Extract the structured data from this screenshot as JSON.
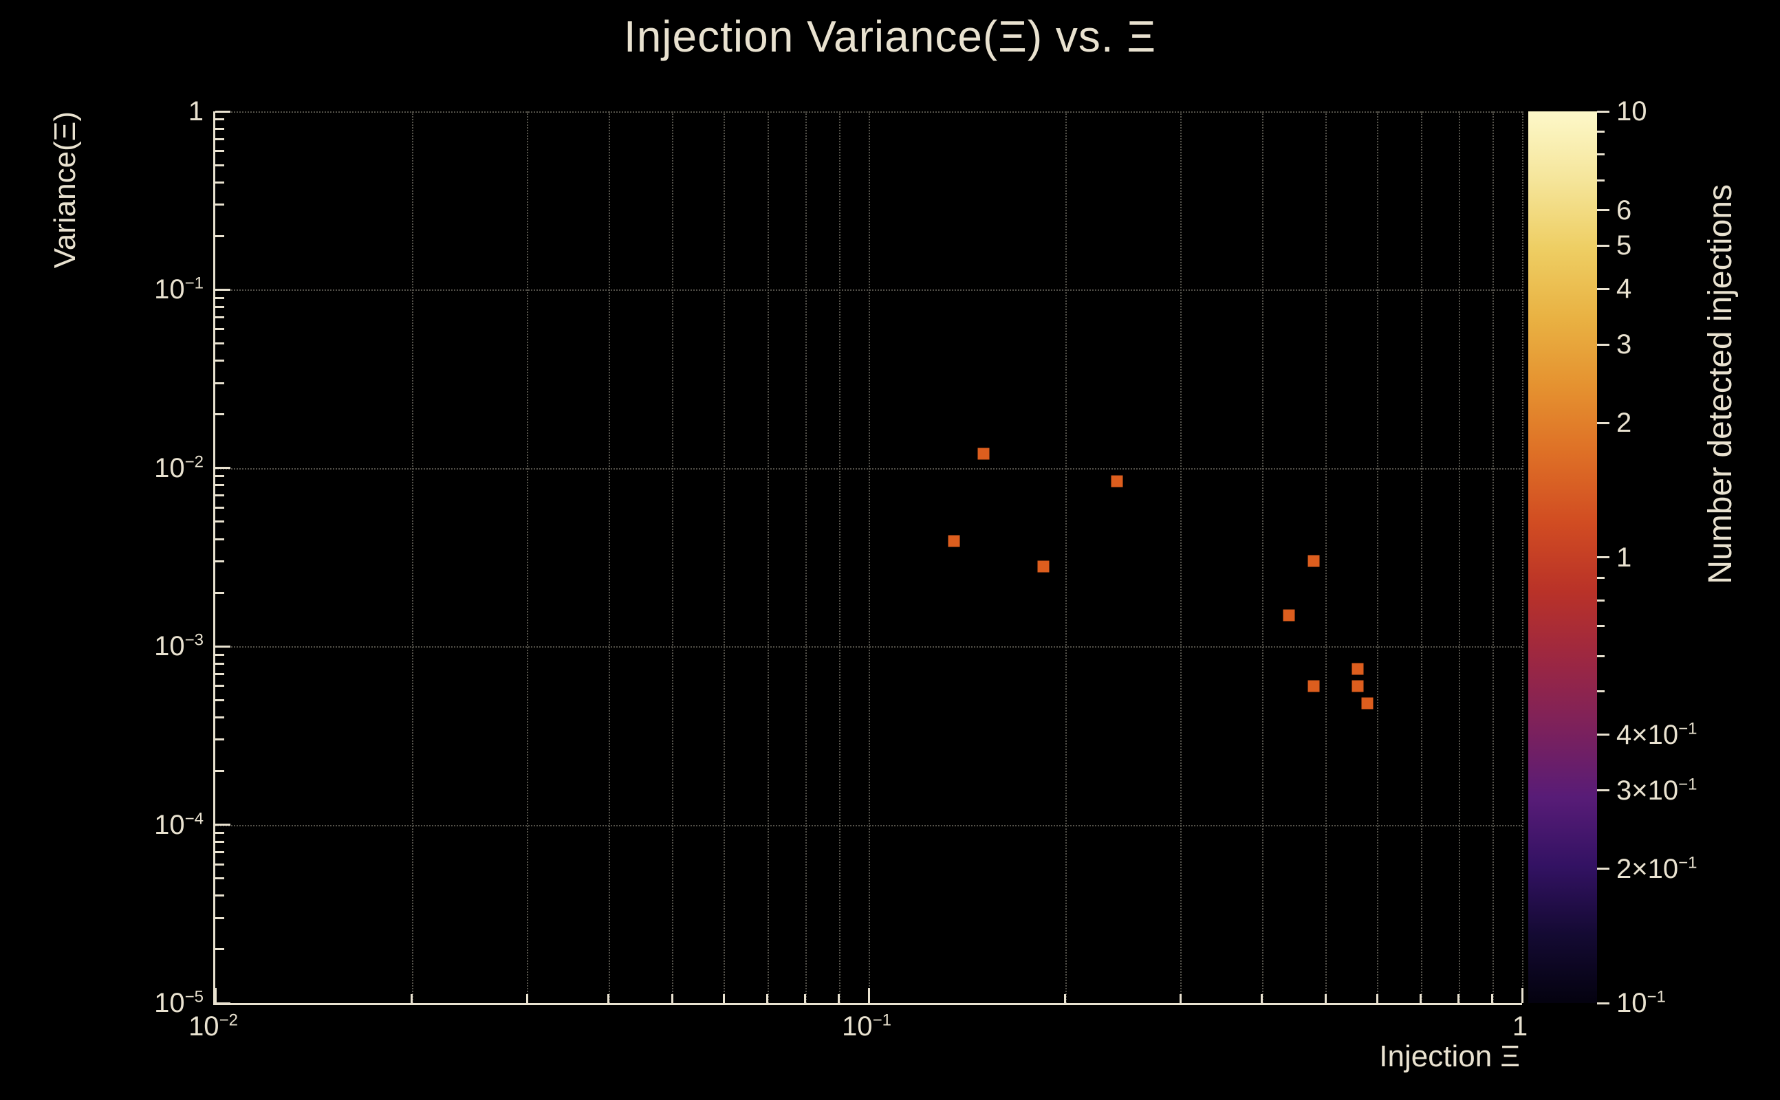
{
  "colors": {
    "background": "#000000",
    "foreground": "#e9e2d0",
    "grid": "#54524a",
    "marker": "#dd5e1e"
  },
  "chart_data": {
    "type": "scatter",
    "title": "Injection Variance(Ξ) vs. Ξ",
    "xlabel": "Injection Ξ",
    "ylabel": "Variance(Ξ)",
    "colorbar_label": "Number detected injections",
    "xscale": "log",
    "yscale": "log",
    "xlim": [
      0.01,
      1
    ],
    "ylim": [
      1e-05,
      1
    ],
    "grid_on": true,
    "x_tick_labels": [
      {
        "v": 0.01,
        "label": "10^{−2}"
      },
      {
        "v": 0.1,
        "label": "10^{−1}"
      },
      {
        "v": 1,
        "label": "1"
      }
    ],
    "y_tick_labels": [
      {
        "v": 1,
        "label": "1"
      },
      {
        "v": 0.1,
        "label": "10^{−1}"
      },
      {
        "v": 0.01,
        "label": "10^{−2}"
      },
      {
        "v": 0.001,
        "label": "10^{−3}"
      },
      {
        "v": 0.0001,
        "label": "10^{−4}"
      },
      {
        "v": 1e-05,
        "label": "10^{−5}"
      }
    ],
    "points": [
      {
        "x": 0.15,
        "y": 0.012,
        "n_detected": 1
      },
      {
        "x": 0.24,
        "y": 0.0084,
        "n_detected": 1
      },
      {
        "x": 0.135,
        "y": 0.0039,
        "n_detected": 1
      },
      {
        "x": 0.185,
        "y": 0.0028,
        "n_detected": 1
      },
      {
        "x": 0.48,
        "y": 0.003,
        "n_detected": 1
      },
      {
        "x": 0.44,
        "y": 0.0015,
        "n_detected": 1
      },
      {
        "x": 0.56,
        "y": 0.00075,
        "n_detected": 1
      },
      {
        "x": 0.48,
        "y": 0.0006,
        "n_detected": 1
      },
      {
        "x": 0.56,
        "y": 0.0006,
        "n_detected": 1
      },
      {
        "x": 0.58,
        "y": 0.00048,
        "n_detected": 1
      }
    ],
    "colorbar": {
      "lim": [
        0.1,
        10
      ],
      "scale": "log",
      "tick_labels": [
        {
          "v": 10,
          "label": "10"
        },
        {
          "v": 6,
          "label": "6"
        },
        {
          "v": 5,
          "label": "5"
        },
        {
          "v": 4,
          "label": "4"
        },
        {
          "v": 3,
          "label": "3"
        },
        {
          "v": 2,
          "label": "2"
        },
        {
          "v": 1,
          "label": "1"
        },
        {
          "v": 0.4,
          "label": "4×10^{−1}"
        },
        {
          "v": 0.3,
          "label": "3×10^{−1}"
        },
        {
          "v": 0.2,
          "label": "2×10^{−1}"
        },
        {
          "v": 0.1,
          "label": "10^{−1}"
        }
      ],
      "gradient_top_to_bottom": [
        "#fdf8c9",
        "#f5e59a",
        "#eece63",
        "#e9b243",
        "#e59230",
        "#de6f26",
        "#d14c22",
        "#b93228",
        "#9c2742",
        "#7c215c",
        "#581c77",
        "#331263",
        "#140a33",
        "#04020f"
      ]
    }
  }
}
